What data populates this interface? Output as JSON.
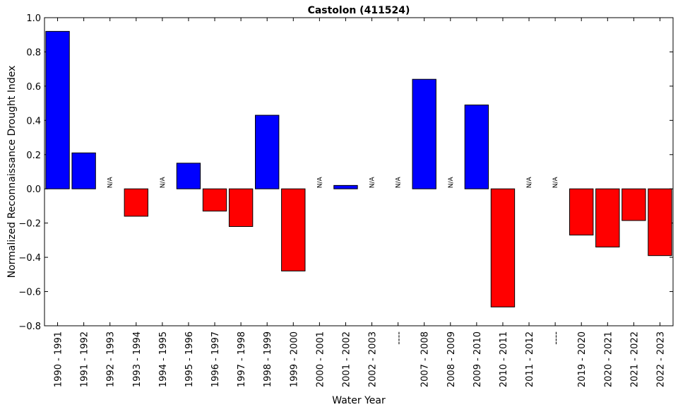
{
  "chart_data": {
    "type": "bar",
    "title": "Castolon (411524)",
    "xlabel": "Water Year",
    "ylabel": "Normalized Reconnaissance Drought Index",
    "ylim": [
      -0.8,
      1.0
    ],
    "yticks": [
      "1.0",
      "0.8",
      "0.6",
      "0.4",
      "0.2",
      "0.0",
      "−0.2",
      "−0.4",
      "−0.6",
      "−0.8"
    ],
    "grid": false,
    "colors": {
      "positive": "#0000ff",
      "negative": "#ff0000"
    },
    "missing_label": "N/A",
    "categories": [
      "1990 - 1991",
      "1991 - 1992",
      "1992 - 1993",
      "1993 - 1994",
      "1994 - 1995",
      "1995 - 1996",
      "1996 - 1997",
      "1997 - 1998",
      "1998 - 1999",
      "1999 - 2000",
      "2000 - 2001",
      "2001 - 2002",
      "2002 - 2003",
      "----",
      "2007 - 2008",
      "2008 - 2009",
      "2009 - 2010",
      "2010 - 2011",
      "2011 - 2012",
      "----",
      "2019 - 2020",
      "2020 - 2021",
      "2021 - 2022",
      "2022 - 2023"
    ],
    "values": [
      0.92,
      0.21,
      null,
      -0.16,
      null,
      0.15,
      -0.13,
      -0.22,
      0.43,
      -0.48,
      null,
      0.02,
      null,
      null,
      0.64,
      null,
      0.49,
      -0.69,
      null,
      null,
      -0.27,
      -0.34,
      -0.185,
      -0.39
    ]
  }
}
